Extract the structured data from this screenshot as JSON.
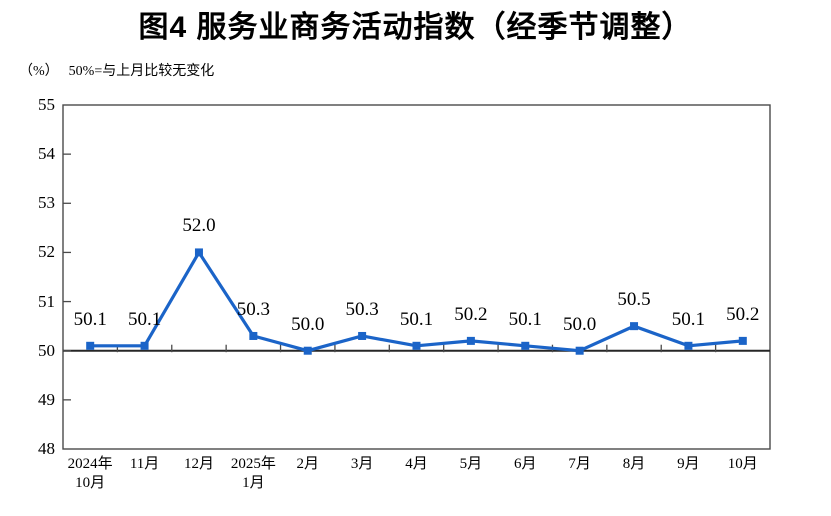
{
  "title": "图4 服务业商务活动指数（经季节调整）",
  "subtitle": {
    "unit": "（%）",
    "note": "50%=与上月比较无变化"
  },
  "chart_data": {
    "type": "line",
    "categories": [
      [
        "2024年",
        "10月"
      ],
      [
        "11月"
      ],
      [
        "12月"
      ],
      [
        "2025年",
        "1月"
      ],
      [
        "2月"
      ],
      [
        "3月"
      ],
      [
        "4月"
      ],
      [
        "5月"
      ],
      [
        "6月"
      ],
      [
        "7月"
      ],
      [
        "8月"
      ],
      [
        "9月"
      ],
      [
        "10月"
      ]
    ],
    "values": [
      50.1,
      50.1,
      52.0,
      50.3,
      50.0,
      50.3,
      50.1,
      50.2,
      50.1,
      50.0,
      50.5,
      50.1,
      50.2
    ],
    "ylim": [
      48,
      55
    ],
    "y_ticks": [
      48,
      49,
      50,
      51,
      52,
      53,
      54,
      55
    ],
    "reference_line": 50,
    "data_labels": true,
    "grid": false,
    "legend": "none",
    "colors": {
      "line": "#1b64c8",
      "marker": "#1b64c8",
      "frame": "#4a4a4a",
      "reference_line": "#262626",
      "text": "#000000"
    }
  }
}
